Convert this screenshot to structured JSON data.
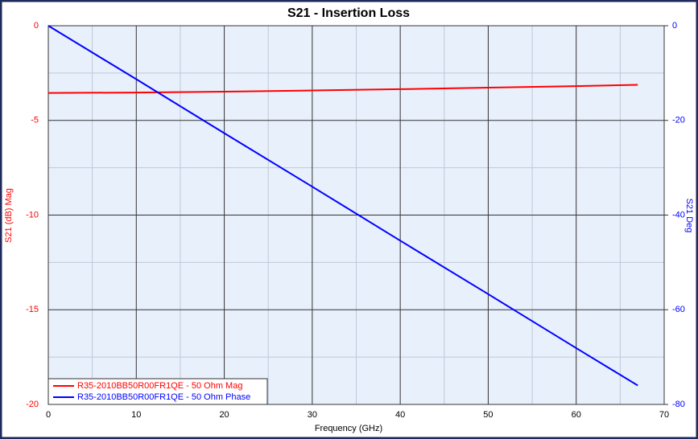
{
  "chart_data": {
    "type": "line",
    "title": "S21 - Insertion Loss",
    "x_label": "Frequency (GHz)",
    "y_label": "S21 (dB) Mag",
    "y2_label": "S21 Deg",
    "x": [
      0,
      10,
      20,
      30,
      40,
      50,
      60,
      67
    ],
    "series": [
      {
        "name": "R35-2010BB50R00FR1QE - 50 Ohm Mag",
        "color": "#ff0000",
        "values": [
          -3.55,
          -3.53,
          -3.48,
          -3.42,
          -3.35,
          -3.27,
          -3.19,
          -3.12
        ]
      },
      {
        "name": "R35-2010BB50R00FR1QE - 50 Ohm Phase",
        "color": "#0000ff",
        "axis": "y2",
        "values": [
          0,
          -11.3,
          -22.7,
          -34,
          -45.4,
          -56.7,
          -68.1,
          -76
        ]
      }
    ],
    "xlim": [
      0,
      70
    ],
    "xticks": [
      0,
      10,
      20,
      30,
      40,
      50,
      60,
      70
    ],
    "xminorticks": [
      5,
      15,
      25,
      35,
      45,
      55,
      65
    ],
    "ylim": [
      -20,
      0
    ],
    "yticks": [
      -20,
      -15,
      -10,
      -5,
      0
    ],
    "yminorticks": [
      -17.5,
      -12.5,
      -7.5,
      -2.5
    ],
    "y2lim": [
      -80,
      0
    ],
    "y2ticks": [
      -80,
      -60,
      -40,
      -20,
      0
    ],
    "grid": true,
    "legend": "lower left"
  }
}
